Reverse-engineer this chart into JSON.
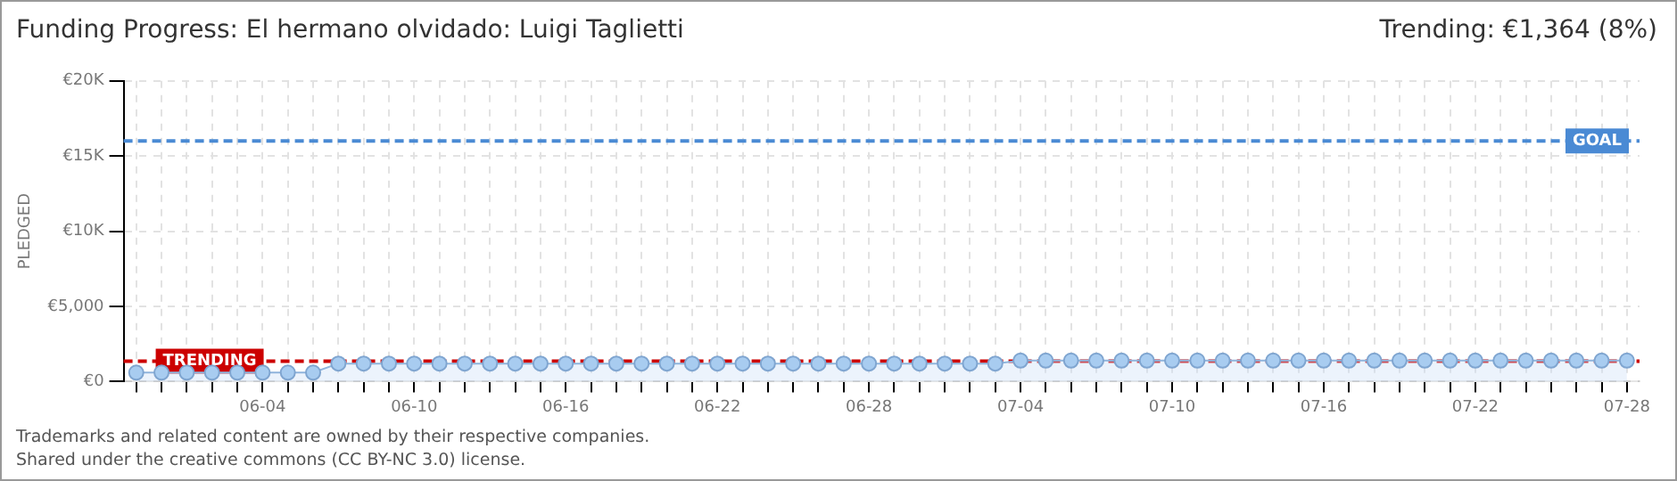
{
  "chart_data": {
    "type": "area",
    "title": "Funding Progress: El hermano olvidado: Luigi Taglietti",
    "subtitle": "Trending: €1,364 (8%)",
    "ylabel": "PLEDGED",
    "categories": [
      null,
      null,
      null,
      null,
      null,
      "06-04",
      null,
      null,
      null,
      null,
      null,
      "06-10",
      null,
      null,
      null,
      null,
      null,
      "06-16",
      null,
      null,
      null,
      null,
      null,
      "06-22",
      null,
      null,
      null,
      null,
      null,
      "06-28",
      null,
      null,
      null,
      null,
      null,
      "07-04",
      null,
      null,
      null,
      null,
      null,
      "07-10",
      null,
      null,
      null,
      null,
      null,
      "07-16",
      null,
      null,
      null,
      null,
      null,
      "07-22",
      null,
      null,
      null,
      null,
      null,
      "07-28"
    ],
    "series": [
      {
        "color": "#a8ccf0",
        "values": [
          600,
          600,
          600,
          600,
          600,
          600,
          600,
          600,
          1200,
          1200,
          1200,
          1200,
          1200,
          1200,
          1200,
          1200,
          1200,
          1200,
          1200,
          1200,
          1200,
          1200,
          1200,
          1200,
          1200,
          1200,
          1200,
          1200,
          1200,
          1200,
          1200,
          1200,
          1200,
          1200,
          1200,
          1400,
          1400,
          1400,
          1400,
          1400,
          1400,
          1400,
          1400,
          1400,
          1400,
          1400,
          1400,
          1400,
          1400,
          1400,
          1400,
          1400,
          1400,
          1400,
          1400,
          1400,
          1400,
          1400,
          1400,
          1400
        ]
      }
    ],
    "ylim": [
      0,
      20000
    ],
    "yticks": [
      {
        "value": 0,
        "label": "€0"
      },
      {
        "value": 5000,
        "label": "€5,000"
      },
      {
        "value": 10000,
        "label": "€10K"
      },
      {
        "value": 15000,
        "label": "€15K"
      },
      {
        "value": 20000,
        "label": "€20K"
      }
    ],
    "grid": true,
    "marker": "circle",
    "legend": false,
    "ref_lines": [
      {
        "axis": "y",
        "value": 16000,
        "label": "GOAL",
        "color": "#4a8ad4",
        "line_style": "dashed"
      },
      {
        "axis": "y",
        "value": 1364,
        "label": "TRENDING",
        "color": "#cc0000",
        "line_style": "dashed"
      }
    ],
    "annotations": [
      "Trademarks and related content are owned by their respective companies.",
      "Shared under the creative commons (CC BY-NC 3.0) license."
    ]
  }
}
